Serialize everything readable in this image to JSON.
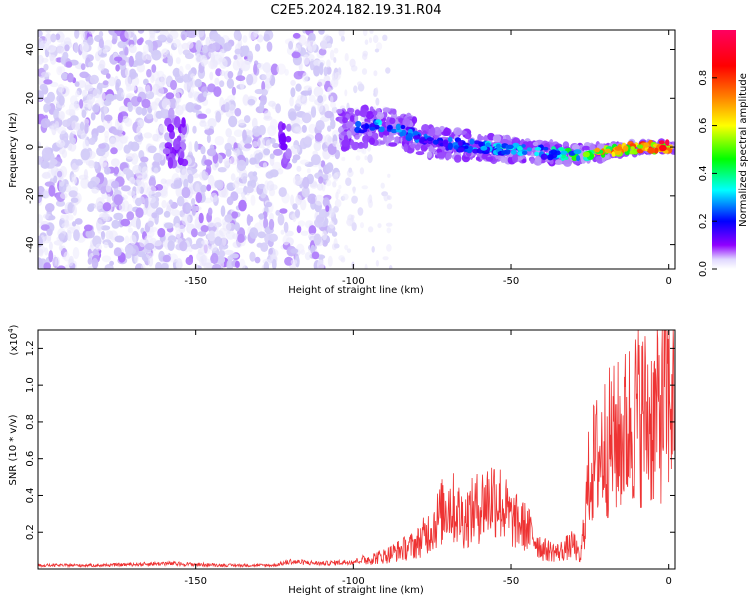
{
  "figure": {
    "title": "C2E5.2024.182.19.31.R04"
  },
  "chart_data": [
    {
      "type": "heatmap",
      "xlabel": "Height of straight line (km)",
      "ylabel": "Frequency (Hz)",
      "xlim": [
        -200,
        2
      ],
      "ylim": [
        -50,
        48
      ],
      "x_ticks": [
        -150,
        -100,
        -50,
        0
      ],
      "y_ticks": [
        -40,
        -20,
        0,
        20,
        40
      ],
      "grid": false,
      "colorbar": {
        "label": "Normalized spectral amplitude",
        "range": [
          0,
          1
        ],
        "ticks": [
          "0.0",
          "0.2",
          "0.4",
          "0.6",
          "0.8"
        ],
        "colormap": "hsv-reversed",
        "stops": [
          "#ffffff",
          "#d0c8f8",
          "#7a00ff",
          "#0000ff",
          "#00ffff",
          "#00ff00",
          "#ffff00",
          "#ff8000",
          "#ff0000",
          "#ff0080"
        ]
      },
      "ridge": [
        {
          "x": -105,
          "y": 7,
          "amp": 0.35
        },
        {
          "x": -92,
          "y": 9,
          "amp": 0.45
        },
        {
          "x": -85,
          "y": 7,
          "amp": 0.42
        },
        {
          "x": -75,
          "y": 2,
          "amp": 0.38
        },
        {
          "x": -60,
          "y": 0,
          "amp": 0.45
        },
        {
          "x": -50,
          "y": -1,
          "amp": 0.5
        },
        {
          "x": -40,
          "y": -2,
          "amp": 0.45
        },
        {
          "x": -30,
          "y": -3,
          "amp": 0.6
        },
        {
          "x": -20,
          "y": -2,
          "amp": 0.85
        },
        {
          "x": -10,
          "y": 0,
          "amp": 0.9
        },
        {
          "x": 0,
          "y": 0,
          "amp": 0.95
        }
      ]
    },
    {
      "type": "line",
      "xlabel": "Height of straight line (km)",
      "ylabel": "SNR (10 * v/v)",
      "y_multiplier": "(x10",
      "y_multiplier_exp": "4",
      "y_multiplier_close": ")",
      "xlim": [
        -200,
        2
      ],
      "ylim": [
        0,
        1.3
      ],
      "x_ticks": [
        -150,
        -100,
        -50,
        0
      ],
      "y_ticks": [
        "0.2",
        "0.4",
        "0.6",
        "0.8",
        "1.0",
        "1.2"
      ],
      "grid": false,
      "color": "#ee3333",
      "series": [
        {
          "x": [
            -200,
            -180,
            -160,
            -140,
            -125,
            -120,
            -110,
            -100,
            -90,
            -80,
            -75,
            -70,
            -65,
            -60,
            -55,
            -50,
            -45,
            -40,
            -35,
            -30,
            -28,
            -25,
            -20,
            -15,
            -10,
            -5,
            0,
            2
          ],
          "y": [
            0.02,
            0.02,
            0.03,
            0.02,
            0.02,
            0.04,
            0.03,
            0.04,
            0.08,
            0.15,
            0.25,
            0.4,
            0.3,
            0.38,
            0.45,
            0.3,
            0.25,
            0.12,
            0.1,
            0.15,
            0.05,
            0.6,
            0.75,
            0.8,
            0.95,
            0.9,
            1.05,
            1.1
          ]
        }
      ]
    }
  ]
}
